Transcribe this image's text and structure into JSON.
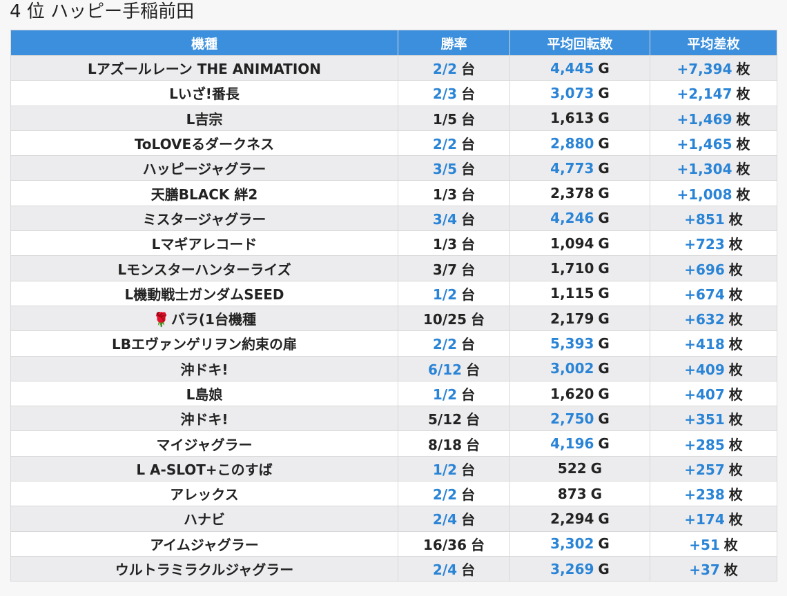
{
  "title": "4 位 ハッピー手稲前田",
  "headers": [
    "機種",
    "勝率",
    "平均回転数",
    "平均差枚"
  ],
  "units": {
    "win": "台",
    "spins": "G",
    "diff": "枚"
  },
  "rows": [
    {
      "prefix": "",
      "machine": "Lアズールレーン THE ANIMATION",
      "win": "2/2",
      "win_hi": true,
      "spins": "4,445",
      "spins_hi": true,
      "diff": "+7,394",
      "diff_hi": true
    },
    {
      "prefix": "",
      "machine": "Lいざ!番長",
      "win": "2/3",
      "win_hi": true,
      "spins": "3,073",
      "spins_hi": true,
      "diff": "+2,147",
      "diff_hi": true
    },
    {
      "prefix": "",
      "machine": "L吉宗",
      "win": "1/5",
      "win_hi": false,
      "spins": "1,613",
      "spins_hi": false,
      "diff": "+1,469",
      "diff_hi": true
    },
    {
      "prefix": "",
      "machine": "ToLOVEるダークネス",
      "win": "2/2",
      "win_hi": true,
      "spins": "2,880",
      "spins_hi": true,
      "diff": "+1,465",
      "diff_hi": true
    },
    {
      "prefix": "",
      "machine": "ハッピージャグラー",
      "win": "3/5",
      "win_hi": true,
      "spins": "4,773",
      "spins_hi": true,
      "diff": "+1,304",
      "diff_hi": true
    },
    {
      "prefix": "",
      "machine": "天膳BLACK 絆2",
      "win": "1/3",
      "win_hi": false,
      "spins": "2,378",
      "spins_hi": false,
      "diff": "+1,008",
      "diff_hi": true
    },
    {
      "prefix": "",
      "machine": "ミスタージャグラー",
      "win": "3/4",
      "win_hi": true,
      "spins": "4,246",
      "spins_hi": true,
      "diff": "+851",
      "diff_hi": true
    },
    {
      "prefix": "",
      "machine": "Lマギアレコード",
      "win": "1/3",
      "win_hi": false,
      "spins": "1,094",
      "spins_hi": false,
      "diff": "+723",
      "diff_hi": true
    },
    {
      "prefix": "",
      "machine": "Lモンスターハンターライズ",
      "win": "3/7",
      "win_hi": false,
      "spins": "1,710",
      "spins_hi": false,
      "diff": "+696",
      "diff_hi": true
    },
    {
      "prefix": "",
      "machine": "L機動戦士ガンダムSEED",
      "win": "1/2",
      "win_hi": true,
      "spins": "1,115",
      "spins_hi": false,
      "diff": "+674",
      "diff_hi": true
    },
    {
      "prefix": "🌹",
      "machine": "バラ(1台機種",
      "win": "10/25",
      "win_hi": false,
      "spins": "2,179",
      "spins_hi": false,
      "diff": "+632",
      "diff_hi": true
    },
    {
      "prefix": "",
      "machine": "LBエヴァンゲリヲン約束の扉",
      "win": "2/2",
      "win_hi": true,
      "spins": "5,393",
      "spins_hi": true,
      "diff": "+418",
      "diff_hi": true
    },
    {
      "prefix": "",
      "machine": "沖ドキ!",
      "win": "6/12",
      "win_hi": true,
      "spins": "3,002",
      "spins_hi": true,
      "diff": "+409",
      "diff_hi": true
    },
    {
      "prefix": "",
      "machine": "L島娘",
      "win": "1/2",
      "win_hi": true,
      "spins": "1,620",
      "spins_hi": false,
      "diff": "+407",
      "diff_hi": true
    },
    {
      "prefix": "",
      "machine": "沖ドキ!",
      "win": "5/12",
      "win_hi": false,
      "spins": "2,750",
      "spins_hi": true,
      "diff": "+351",
      "diff_hi": true
    },
    {
      "prefix": "",
      "machine": "マイジャグラー",
      "win": "8/18",
      "win_hi": false,
      "spins": "4,196",
      "spins_hi": true,
      "diff": "+285",
      "diff_hi": true
    },
    {
      "prefix": "",
      "machine": "L A-SLOT+このすば",
      "win": "1/2",
      "win_hi": true,
      "spins": "522",
      "spins_hi": false,
      "diff": "+257",
      "diff_hi": true
    },
    {
      "prefix": "",
      "machine": "アレックス",
      "win": "2/2",
      "win_hi": true,
      "spins": "873",
      "spins_hi": false,
      "diff": "+238",
      "diff_hi": true
    },
    {
      "prefix": "",
      "machine": "ハナビ",
      "win": "2/4",
      "win_hi": true,
      "spins": "2,294",
      "spins_hi": false,
      "diff": "+174",
      "diff_hi": true
    },
    {
      "prefix": "",
      "machine": "アイムジャグラー",
      "win": "16/36",
      "win_hi": false,
      "spins": "3,302",
      "spins_hi": true,
      "diff": "+51",
      "diff_hi": true
    },
    {
      "prefix": "",
      "machine": "ウルトラミラクルジャグラー",
      "win": "2/4",
      "win_hi": true,
      "spins": "3,269",
      "spins_hi": true,
      "diff": "+37",
      "diff_hi": true
    }
  ]
}
